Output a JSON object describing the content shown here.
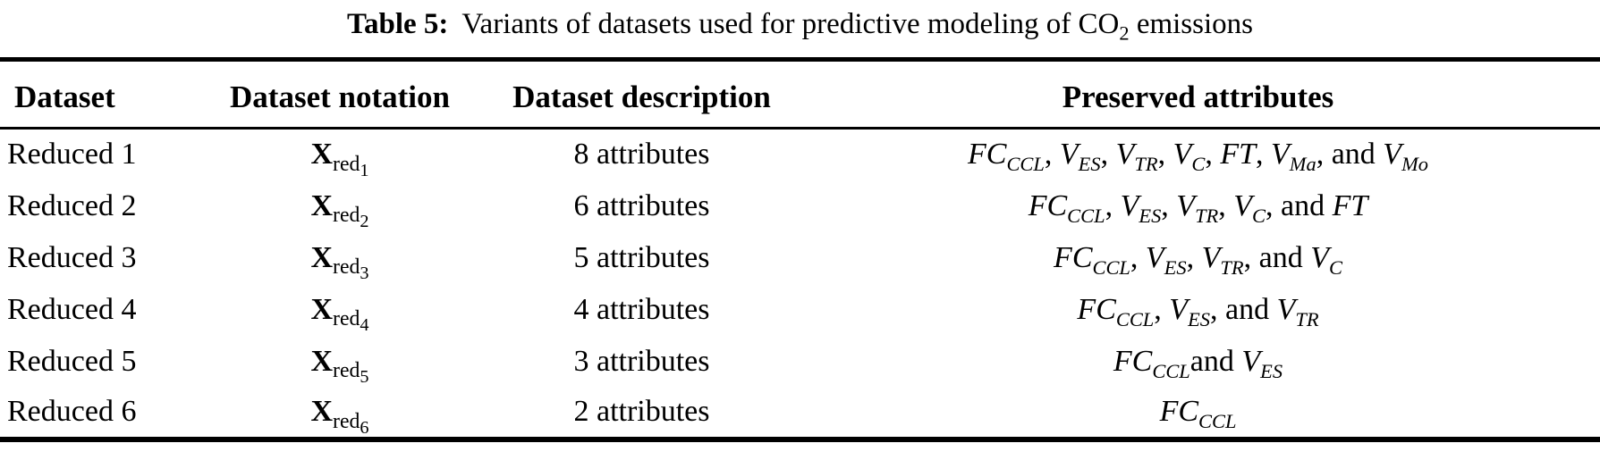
{
  "caption": {
    "label": "Table 5:",
    "prefix": "Variants of datasets used for predictive modeling of CO",
    "sub": "2",
    "suffix": " emissions"
  },
  "table": {
    "headers": [
      "Dataset",
      "Dataset notation",
      "Dataset description",
      "Preserved attributes"
    ],
    "rows": [
      {
        "dataset": "Reduced 1",
        "notation": {
          "base": "X",
          "sub": "red",
          "subsub": "1"
        },
        "description": "8 attributes",
        "attributes": [
          {
            "base": "FC",
            "sub": "CCL",
            "sep": ", "
          },
          {
            "base": "V",
            "sub": "ES",
            "sep": ", "
          },
          {
            "base": "V",
            "sub": "TR",
            "sep": ", "
          },
          {
            "base": "V",
            "sub": "C",
            "sep": ", "
          },
          {
            "base": "FT",
            "sub": "",
            "sep": ", "
          },
          {
            "base": "V",
            "sub": "Ma",
            "sep": ", and "
          },
          {
            "base": "V",
            "sub": "Mo",
            "sep": ""
          }
        ]
      },
      {
        "dataset": "Reduced 2",
        "notation": {
          "base": "X",
          "sub": "red",
          "subsub": "2"
        },
        "description": "6 attributes",
        "attributes": [
          {
            "base": "FC",
            "sub": "CCL",
            "sep": ", "
          },
          {
            "base": "V",
            "sub": "ES",
            "sep": ", "
          },
          {
            "base": "V",
            "sub": "TR",
            "sep": ", "
          },
          {
            "base": "V",
            "sub": "C",
            "sep": ", and "
          },
          {
            "base": "FT",
            "sub": "",
            "sep": ""
          }
        ]
      },
      {
        "dataset": "Reduced 3",
        "notation": {
          "base": "X",
          "sub": "red",
          "subsub": "3"
        },
        "description": "5 attributes",
        "attributes": [
          {
            "base": "FC",
            "sub": "CCL",
            "sep": ", "
          },
          {
            "base": "V",
            "sub": "ES",
            "sep": ", "
          },
          {
            "base": "V",
            "sub": "TR",
            "sep": ", and "
          },
          {
            "base": "V",
            "sub": "C",
            "sep": ""
          }
        ]
      },
      {
        "dataset": "Reduced 4",
        "notation": {
          "base": "X",
          "sub": "red",
          "subsub": "4"
        },
        "description": "4 attributes",
        "attributes": [
          {
            "base": "FC",
            "sub": "CCL",
            "sep": ", "
          },
          {
            "base": "V",
            "sub": "ES",
            "sep": ", and "
          },
          {
            "base": "V",
            "sub": "TR",
            "sep": ""
          }
        ]
      },
      {
        "dataset": "Reduced 5",
        "notation": {
          "base": "X",
          "sub": "red",
          "subsub": "5"
        },
        "description": "3 attributes",
        "attributes": [
          {
            "base": "FC",
            "sub": "CCL",
            "sep": "and "
          },
          {
            "base": "V",
            "sub": "ES",
            "sep": ""
          }
        ]
      },
      {
        "dataset": "Reduced 6",
        "notation": {
          "base": "X",
          "sub": "red",
          "subsub": "6"
        },
        "description": "2 attributes",
        "attributes": [
          {
            "base": "FC",
            "sub": "CCL",
            "sep": ""
          }
        ]
      }
    ]
  },
  "colors": {
    "text": "#000000",
    "background": "#ffffff",
    "rule": "#000000"
  }
}
